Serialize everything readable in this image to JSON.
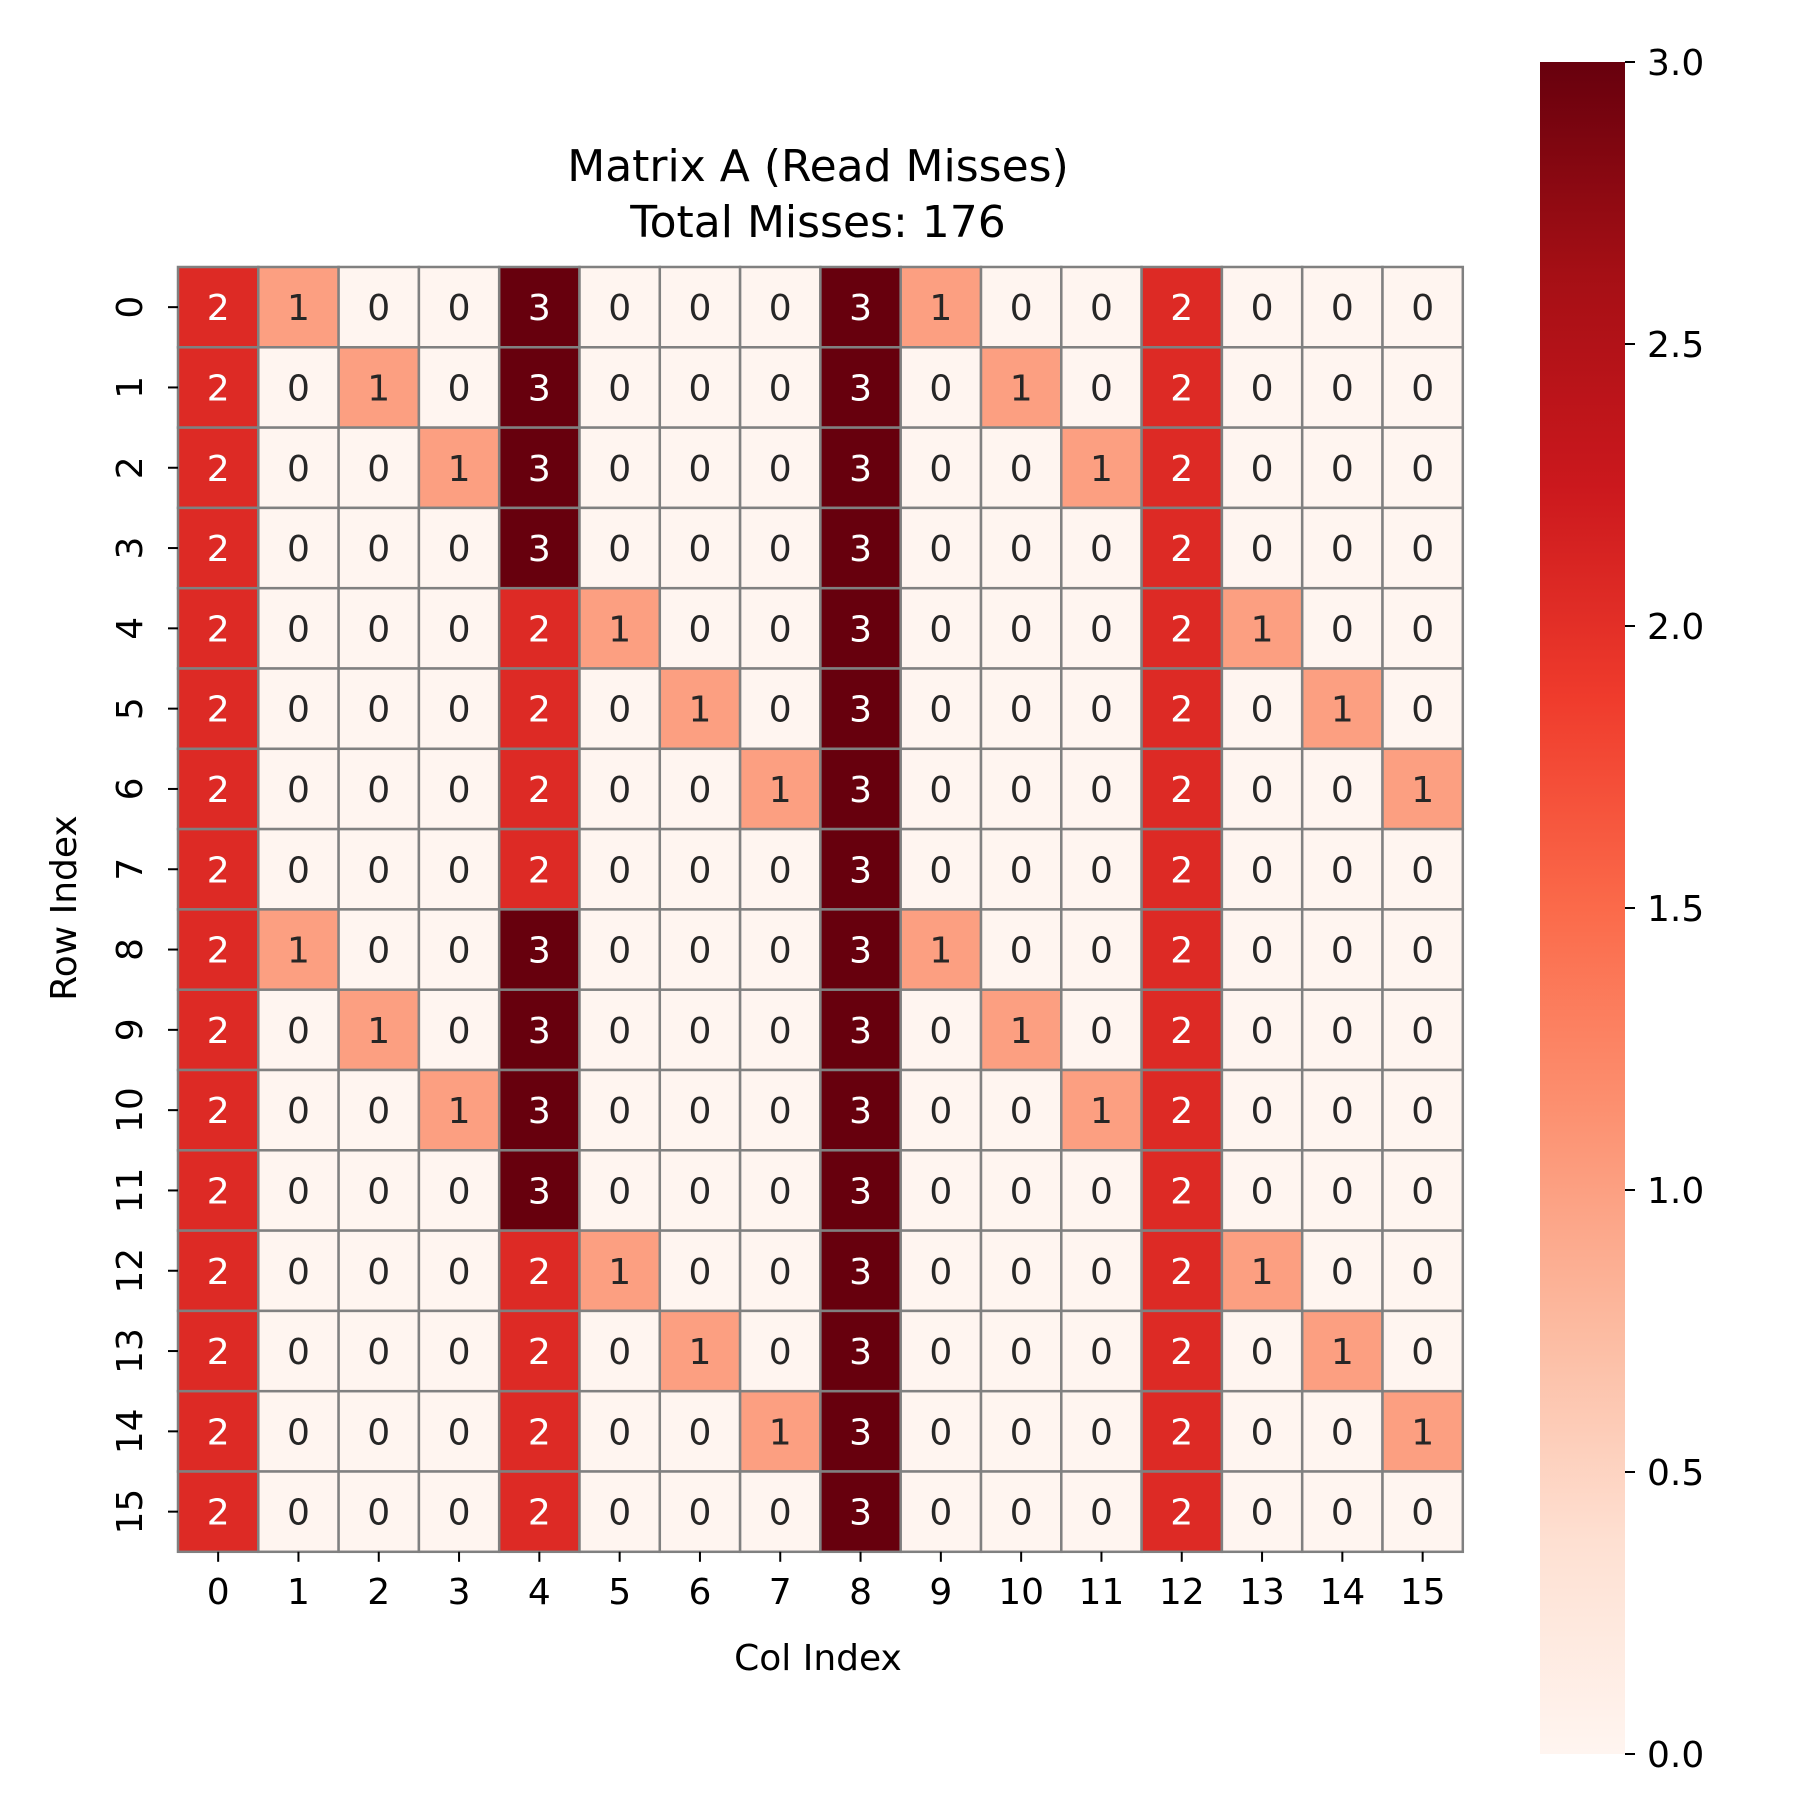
{
  "chart_data": {
    "type": "heatmap",
    "title": "Matrix A (Read Misses)",
    "subtitle": "Total Misses: 176",
    "xlabel": "Col Index",
    "ylabel": "Row Index",
    "x_categories": [
      "0",
      "1",
      "2",
      "3",
      "4",
      "5",
      "6",
      "7",
      "8",
      "9",
      "10",
      "11",
      "12",
      "13",
      "14",
      "15"
    ],
    "y_categories": [
      "0",
      "1",
      "2",
      "3",
      "4",
      "5",
      "6",
      "7",
      "8",
      "9",
      "10",
      "11",
      "12",
      "13",
      "14",
      "15"
    ],
    "values": [
      [
        2,
        1,
        0,
        0,
        3,
        0,
        0,
        0,
        3,
        1,
        0,
        0,
        2,
        0,
        0,
        0
      ],
      [
        2,
        0,
        1,
        0,
        3,
        0,
        0,
        0,
        3,
        0,
        1,
        0,
        2,
        0,
        0,
        0
      ],
      [
        2,
        0,
        0,
        1,
        3,
        0,
        0,
        0,
        3,
        0,
        0,
        1,
        2,
        0,
        0,
        0
      ],
      [
        2,
        0,
        0,
        0,
        3,
        0,
        0,
        0,
        3,
        0,
        0,
        0,
        2,
        0,
        0,
        0
      ],
      [
        2,
        0,
        0,
        0,
        2,
        1,
        0,
        0,
        3,
        0,
        0,
        0,
        2,
        1,
        0,
        0
      ],
      [
        2,
        0,
        0,
        0,
        2,
        0,
        1,
        0,
        3,
        0,
        0,
        0,
        2,
        0,
        1,
        0
      ],
      [
        2,
        0,
        0,
        0,
        2,
        0,
        0,
        1,
        3,
        0,
        0,
        0,
        2,
        0,
        0,
        1
      ],
      [
        2,
        0,
        0,
        0,
        2,
        0,
        0,
        0,
        3,
        0,
        0,
        0,
        2,
        0,
        0,
        0
      ],
      [
        2,
        1,
        0,
        0,
        3,
        0,
        0,
        0,
        3,
        1,
        0,
        0,
        2,
        0,
        0,
        0
      ],
      [
        2,
        0,
        1,
        0,
        3,
        0,
        0,
        0,
        3,
        0,
        1,
        0,
        2,
        0,
        0,
        0
      ],
      [
        2,
        0,
        0,
        1,
        3,
        0,
        0,
        0,
        3,
        0,
        0,
        1,
        2,
        0,
        0,
        0
      ],
      [
        2,
        0,
        0,
        0,
        3,
        0,
        0,
        0,
        3,
        0,
        0,
        0,
        2,
        0,
        0,
        0
      ],
      [
        2,
        0,
        0,
        0,
        2,
        1,
        0,
        0,
        3,
        0,
        0,
        0,
        2,
        1,
        0,
        0
      ],
      [
        2,
        0,
        0,
        0,
        2,
        0,
        1,
        0,
        3,
        0,
        0,
        0,
        2,
        0,
        1,
        0
      ],
      [
        2,
        0,
        0,
        0,
        2,
        0,
        0,
        1,
        3,
        0,
        0,
        0,
        2,
        0,
        0,
        1
      ],
      [
        2,
        0,
        0,
        0,
        2,
        0,
        0,
        0,
        3,
        0,
        0,
        0,
        2,
        0,
        0,
        0
      ]
    ],
    "colorscale": "Reds",
    "vmin": 0,
    "vmax": 3,
    "value_colors": {
      "0": "#fff5f0",
      "1": "#fc9f81",
      "2": "#dd2a25",
      "3": "#67000d"
    },
    "colorbar_ticks": [
      "0.0",
      "0.5",
      "1.0",
      "1.5",
      "2.0",
      "2.5",
      "3.0"
    ],
    "cell_border_color": "#808080",
    "annotated": true
  }
}
